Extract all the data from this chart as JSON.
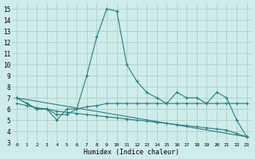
{
  "line1_x": [
    0,
    1,
    2,
    3,
    4,
    5,
    6,
    7,
    8,
    9,
    10,
    11,
    12,
    13,
    14,
    15,
    16,
    17,
    18,
    19,
    20,
    21,
    22,
    23
  ],
  "line1_y": [
    7.0,
    6.5,
    6.0,
    6.0,
    5.0,
    6.0,
    6.0,
    9.0,
    12.5,
    15.0,
    14.8,
    10.0,
    8.5,
    7.5,
    7.0,
    6.5,
    7.5,
    7.0,
    7.0,
    6.5,
    7.5,
    7.0,
    5.0,
    3.5
  ],
  "line2_x": [
    0,
    1,
    2,
    3,
    4,
    5,
    6,
    7,
    8,
    9,
    10,
    11,
    12,
    13,
    14,
    15,
    16,
    17,
    18,
    19,
    20,
    21,
    22,
    23
  ],
  "line2_y": [
    7.0,
    6.5,
    6.0,
    6.0,
    5.5,
    5.5,
    6.0,
    6.2,
    6.3,
    6.5,
    6.5,
    6.5,
    6.5,
    6.5,
    6.5,
    6.5,
    6.5,
    6.5,
    6.5,
    6.5,
    6.5,
    6.5,
    6.5,
    6.5
  ],
  "line3_x": [
    0,
    23
  ],
  "line3_y": [
    7.0,
    3.5
  ],
  "line4_x": [
    0,
    1,
    2,
    3,
    4,
    5,
    6,
    7,
    8,
    9,
    10,
    11,
    12,
    13,
    14,
    15,
    16,
    17,
    18,
    19,
    20,
    21,
    22,
    23
  ],
  "line4_y": [
    6.5,
    6.3,
    6.1,
    6.0,
    5.8,
    5.7,
    5.6,
    5.5,
    5.4,
    5.3,
    5.2,
    5.1,
    5.0,
    4.9,
    4.8,
    4.7,
    4.6,
    4.5,
    4.4,
    4.3,
    4.2,
    4.1,
    3.8,
    3.5
  ],
  "color": "#2e7d7d",
  "bg_color": "#ceecea",
  "grid_color": "#aed4d2",
  "xlabel": "Humidex (Indice chaleur)",
  "xlim": [
    -0.5,
    23.5
  ],
  "ylim": [
    3,
    15.5
  ],
  "xticks": [
    0,
    1,
    2,
    3,
    4,
    5,
    6,
    7,
    8,
    9,
    10,
    11,
    12,
    13,
    14,
    15,
    16,
    17,
    18,
    19,
    20,
    21,
    22,
    23
  ],
  "yticks": [
    3,
    4,
    5,
    6,
    7,
    8,
    9,
    10,
    11,
    12,
    13,
    14,
    15
  ]
}
